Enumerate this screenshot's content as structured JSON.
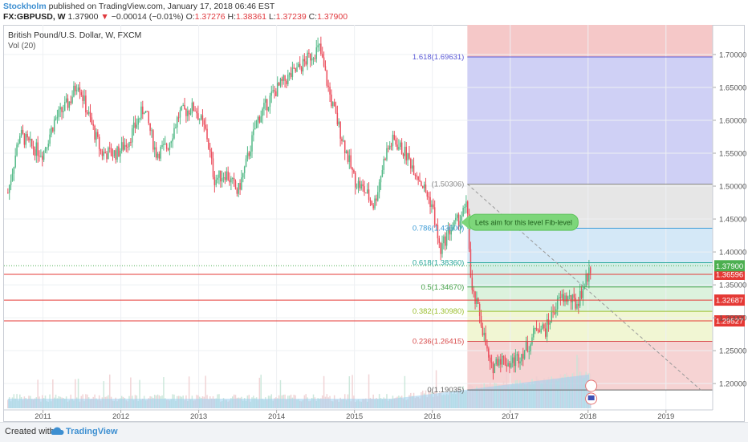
{
  "header": {
    "author": "Stockholm",
    "published_text": "published on TradingView.com, January 17, 2018 06:46 EST",
    "symbol": "FX:GBPUSD, W",
    "last": "1.37900",
    "arrow": "▼",
    "change": "−0.00014 (−0.01%)",
    "open_label": "O:",
    "open_value": "1.37276",
    "high_label": "H:",
    "high_value": "1.38361",
    "low_label": "L:",
    "low_value": "1.37239",
    "close_label": "C:",
    "close_value": "1.37900"
  },
  "footer": {
    "created_with": "Created with",
    "brand": "TradingView"
  },
  "colors": {
    "up": "#53b987",
    "down": "#eb4d5c",
    "volume": "#9fcff0",
    "hline": "#e53935",
    "price_box": "#e53935",
    "last_box": "#4caf50"
  },
  "chart_data": {
    "type": "candlestick",
    "title": "British Pound/U.S. Dollar, W, FXCM",
    "volume_label": "Vol (20)",
    "x_ticks": [
      "2011",
      "2012",
      "2013",
      "2014",
      "2015",
      "2016",
      "2017",
      "2018",
      "2019"
    ],
    "ylim": [
      1.16,
      1.745
    ],
    "y_ticks": [
      "1.70000",
      "1.65000",
      "1.60000",
      "1.55000",
      "1.50000",
      "1.45000",
      "1.40000",
      "1.35000",
      "1.30000",
      "1.25000",
      "1.20000"
    ],
    "price_path": [
      [
        2010.55,
        1.49
      ],
      [
        2010.7,
        1.58
      ],
      [
        2010.85,
        1.56
      ],
      [
        2011.0,
        1.55
      ],
      [
        2011.15,
        1.6
      ],
      [
        2011.35,
        1.63
      ],
      [
        2011.45,
        1.66
      ],
      [
        2011.55,
        1.62
      ],
      [
        2011.75,
        1.55
      ],
      [
        2011.95,
        1.55
      ],
      [
        2012.1,
        1.57
      ],
      [
        2012.3,
        1.62
      ],
      [
        2012.45,
        1.55
      ],
      [
        2012.6,
        1.56
      ],
      [
        2012.75,
        1.61
      ],
      [
        2012.95,
        1.62
      ],
      [
        2013.1,
        1.58
      ],
      [
        2013.2,
        1.51
      ],
      [
        2013.35,
        1.52
      ],
      [
        2013.5,
        1.49
      ],
      [
        2013.6,
        1.53
      ],
      [
        2013.75,
        1.6
      ],
      [
        2013.95,
        1.64
      ],
      [
        2014.1,
        1.66
      ],
      [
        2014.3,
        1.68
      ],
      [
        2014.45,
        1.7
      ],
      [
        2014.55,
        1.71
      ],
      [
        2014.7,
        1.63
      ],
      [
        2014.85,
        1.57
      ],
      [
        2015.0,
        1.51
      ],
      [
        2015.15,
        1.49
      ],
      [
        2015.25,
        1.47
      ],
      [
        2015.4,
        1.55
      ],
      [
        2015.5,
        1.57
      ],
      [
        2015.65,
        1.55
      ],
      [
        2015.8,
        1.52
      ],
      [
        2016.0,
        1.47
      ],
      [
        2016.1,
        1.4
      ],
      [
        2016.2,
        1.43
      ],
      [
        2016.35,
        1.45
      ],
      [
        2016.45,
        1.47
      ],
      [
        2016.5,
        1.34
      ],
      [
        2016.6,
        1.31
      ],
      [
        2016.75,
        1.22
      ],
      [
        2016.85,
        1.24
      ],
      [
        2017.0,
        1.23
      ],
      [
        2017.1,
        1.24
      ],
      [
        2017.25,
        1.26
      ],
      [
        2017.35,
        1.29
      ],
      [
        2017.45,
        1.28
      ],
      [
        2017.55,
        1.31
      ],
      [
        2017.65,
        1.33
      ],
      [
        2017.75,
        1.33
      ],
      [
        2017.85,
        1.32
      ],
      [
        2017.95,
        1.35
      ],
      [
        2018.04,
        1.379
      ]
    ],
    "fibonacci": {
      "levels": [
        {
          "label": "1.618(1.69631)",
          "price": 1.69631,
          "color": "#5a5ad6"
        },
        {
          "label": "(1.50306)",
          "price": 1.50306,
          "color": "#888888"
        },
        {
          "label": "0.786(1.43600)",
          "price": 1.436,
          "color": "#3c9bd6"
        },
        {
          "label": "0.618(1.38360)",
          "price": 1.3836,
          "color": "#26a69a"
        },
        {
          "label": "0.5(1.34670)",
          "price": 1.3467,
          "color": "#43a047"
        },
        {
          "label": "0.382(1.30980)",
          "price": 1.3098,
          "color": "#9bbf2f"
        },
        {
          "label": "0.236(1.26415)",
          "price": 1.26415,
          "color": "#d84b4b"
        },
        {
          "label": "0(1.19035)",
          "price": 1.19035,
          "color": "#666666"
        }
      ],
      "zones": [
        {
          "top": 1.745,
          "bottom": 1.69631,
          "color": "#f5c8c8"
        },
        {
          "top": 1.69631,
          "bottom": 1.50306,
          "color": "#cfd0f5"
        },
        {
          "top": 1.50306,
          "bottom": 1.436,
          "color": "#e6e6e6"
        },
        {
          "top": 1.436,
          "bottom": 1.3836,
          "color": "#d4e8f7"
        },
        {
          "top": 1.3836,
          "bottom": 1.3467,
          "color": "#d3eee6"
        },
        {
          "top": 1.3467,
          "bottom": 1.3098,
          "color": "#dcf2dd"
        },
        {
          "top": 1.3098,
          "bottom": 1.26415,
          "color": "#f1f6d3"
        },
        {
          "top": 1.26415,
          "bottom": 1.19035,
          "color": "#f6d3d3"
        }
      ]
    },
    "horizontal_lines": [
      {
        "price": 1.36596,
        "label": "1.36596"
      },
      {
        "price": 1.32687,
        "label": "1.32687"
      },
      {
        "price": 1.29527,
        "label": "1.29527"
      }
    ],
    "last_price": {
      "price": 1.379,
      "label": "1.37900"
    },
    "trendline": {
      "from": [
        2016.45,
        1.50306
      ],
      "to": [
        2019.45,
        1.19
      ]
    },
    "annotation": {
      "text": "Lets aim for this level Fib-level",
      "at": [
        2016.45,
        1.445
      ]
    }
  }
}
